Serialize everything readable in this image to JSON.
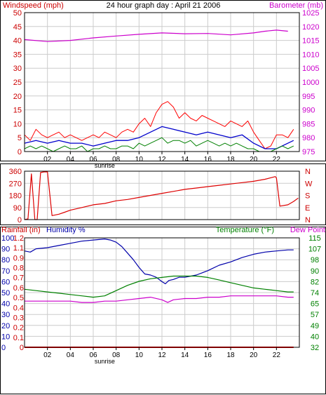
{
  "chart_data": [
    {
      "type": "line",
      "title": "24 hour graph day : April 21 2006",
      "left_axis_label": "Windspeed (mph)",
      "right_axis_label": "Barometer (mb)",
      "left_ticks": [
        "0",
        "5",
        "10",
        "15",
        "20",
        "25",
        "30",
        "35",
        "40",
        "45",
        "50"
      ],
      "right_ticks": [
        "975",
        "980",
        "985",
        "990",
        "995",
        "1000",
        "1005",
        "1010",
        "1015",
        "1020",
        "1025"
      ],
      "ylim_left": [
        0,
        50
      ],
      "ylim_right": [
        975,
        1025
      ],
      "x_ticks": [
        "02",
        "04",
        "06",
        "08",
        "10",
        "12",
        "14",
        "16",
        "18",
        "20",
        "22"
      ],
      "x_note": "sunrise",
      "grid": true,
      "colors": {
        "gust": "#ff0000",
        "average": "#0000cc",
        "speed": "#008000",
        "barometer": "#cc00cc"
      },
      "series": [
        {
          "key": "barometer",
          "axis": "right",
          "x": [
            0,
            2,
            4,
            6,
            8,
            10,
            12,
            14,
            16,
            18,
            20,
            21,
            22,
            23
          ],
          "values": [
            1015.3,
            1014.6,
            1015.0,
            1015.9,
            1016.6,
            1017.2,
            1017.7,
            1017.4,
            1017.5,
            1017.0,
            1017.7,
            1018.3,
            1018.7,
            1018.3
          ]
        },
        {
          "key": "gust",
          "axis": "left",
          "x": [
            0,
            0.5,
            1,
            1.5,
            2,
            2.5,
            3,
            3.5,
            4,
            4.5,
            5,
            5.5,
            6,
            6.5,
            7,
            7.5,
            8,
            8.5,
            9,
            9.5,
            10,
            10.5,
            11,
            11.5,
            12,
            12.5,
            13,
            13.5,
            14,
            14.5,
            15,
            15.5,
            16,
            16.5,
            17,
            17.5,
            18,
            18.5,
            19,
            19.5,
            20,
            20.5,
            21,
            21.5,
            22,
            22.5,
            23,
            23.5
          ],
          "values": [
            6,
            4,
            8,
            6,
            5,
            6,
            7,
            5,
            6,
            5,
            4,
            5,
            6,
            5,
            7,
            6,
            5,
            7,
            8,
            7,
            10,
            12,
            9,
            14,
            17,
            18,
            16,
            12,
            14,
            12,
            11,
            13,
            12,
            11,
            10,
            9,
            11,
            10,
            9,
            11,
            7,
            4,
            1,
            2,
            6,
            6,
            5,
            8
          ]
        },
        {
          "key": "average",
          "axis": "left",
          "x": [
            0,
            1,
            2,
            3,
            4,
            5,
            6,
            7,
            8,
            9,
            10,
            11,
            12,
            13,
            14,
            15,
            16,
            17,
            18,
            19,
            20,
            21,
            22,
            23,
            23.5
          ],
          "values": [
            3,
            4,
            3,
            4,
            3,
            3,
            2,
            3,
            4,
            4,
            5,
            7,
            9,
            8,
            7,
            6,
            7,
            6,
            5,
            6,
            3,
            1,
            1,
            3,
            4
          ]
        },
        {
          "key": "speed",
          "axis": "left",
          "x": [
            0,
            0.5,
            1,
            1.5,
            2,
            2.5,
            3,
            3.5,
            4,
            4.5,
            5,
            5.5,
            6,
            6.5,
            7,
            7.5,
            8,
            8.5,
            9,
            9.5,
            10,
            10.5,
            11,
            11.5,
            12,
            12.5,
            13,
            13.5,
            14,
            14.5,
            15,
            15.5,
            16,
            16.5,
            17,
            17.5,
            18,
            18.5,
            19,
            19.5,
            20,
            20.5,
            21,
            21.5,
            22,
            22.5,
            23,
            23.5
          ],
          "values": [
            1,
            2,
            1,
            2,
            1,
            0,
            1,
            2,
            1,
            1,
            2,
            0,
            1,
            1,
            2,
            1,
            1,
            2,
            2,
            1,
            3,
            2,
            3,
            4,
            5,
            3,
            4,
            4,
            3,
            4,
            2,
            3,
            4,
            3,
            2,
            3,
            2,
            3,
            2,
            1,
            1,
            0,
            0,
            0,
            1,
            2,
            1,
            2
          ]
        }
      ]
    },
    {
      "type": "line",
      "left_ticks": [
        "360",
        "270",
        "180",
        "90",
        "0"
      ],
      "right_ticks": [
        "N",
        "W",
        "S",
        "E",
        "N"
      ],
      "ylim": [
        0,
        360
      ],
      "grid": true,
      "colors": {
        "direction": "#dd0000"
      },
      "series": [
        {
          "key": "direction",
          "x": [
            0,
            0.3,
            0.6,
            0.9,
            1.1,
            1.4,
            1.7,
            2,
            2.4,
            3,
            3.5,
            4,
            5,
            6,
            7,
            8,
            9,
            10,
            11,
            12,
            13,
            14,
            15,
            16,
            17,
            18,
            19,
            20,
            21,
            21.9,
            22,
            22.3,
            23,
            23.5,
            23.9
          ],
          "values": [
            0,
            5,
            340,
            0,
            0,
            350,
            355,
            355,
            30,
            40,
            55,
            70,
            90,
            110,
            120,
            140,
            150,
            165,
            180,
            195,
            210,
            225,
            235,
            245,
            255,
            265,
            275,
            285,
            300,
            320,
            310,
            100,
            110,
            135,
            160
          ]
        }
      ]
    },
    {
      "type": "line",
      "left_axis_label": "Rainfall (in)",
      "humidity_axis_label": "Humidity %",
      "right_axis_label": "Temperature (°F)",
      "right_axis_label_2": "Dew Point",
      "rain_ticks": [
        "0",
        "0.1",
        "0.2",
        "0.3",
        "0.4",
        "0.5",
        "0.6",
        "0.7",
        "0.8",
        "0.9",
        "1.1",
        "1.2"
      ],
      "humidity_ticks": [
        "0",
        "10",
        "20",
        "30",
        "40",
        "50",
        "60",
        "70",
        "80",
        "90",
        "100"
      ],
      "temp_ticks": [
        "32",
        "40",
        "49",
        "57",
        "65",
        "74",
        "82",
        "90",
        "98",
        "107",
        "115"
      ],
      "ylim_humidity": [
        0,
        100
      ],
      "ylim_temperature": [
        32,
        115
      ],
      "x_ticks": [
        "02",
        "04",
        "06",
        "08",
        "10",
        "12",
        "14",
        "16",
        "18",
        "20",
        "22"
      ],
      "x_note": "sunrise",
      "grid": true,
      "colors": {
        "humidity": "#0000aa",
        "temperature": "#008000",
        "dewpoint": "#cc00cc",
        "rainfall": "#ff0000"
      },
      "series": [
        {
          "key": "humidity",
          "axis": "humidity",
          "x": [
            0,
            0.5,
            1,
            2,
            3,
            4,
            5,
            6,
            7,
            7.5,
            8,
            8.5,
            9,
            9.5,
            10,
            10.5,
            11,
            11.5,
            12,
            12.3,
            12.6,
            13,
            13.5,
            14,
            14.5,
            15,
            15.5,
            16,
            17,
            18,
            19,
            20,
            21,
            22,
            23,
            23.5
          ],
          "values": [
            88,
            87,
            90,
            91,
            93,
            95,
            97,
            98,
            99,
            98,
            96,
            92,
            86,
            80,
            73,
            67,
            66,
            64,
            60,
            58,
            61,
            62,
            64,
            64,
            65,
            66,
            68,
            70,
            75,
            78,
            82,
            85,
            87,
            88,
            89,
            89
          ]
        },
        {
          "key": "temperature",
          "axis": "temperature",
          "x": [
            0,
            1,
            2,
            3,
            4,
            5,
            6,
            7,
            8,
            9,
            10,
            11,
            12,
            13,
            14,
            15,
            16,
            17,
            18,
            19,
            20,
            21,
            22,
            23,
            23.5
          ],
          "values": [
            76,
            75,
            74,
            73,
            72,
            71,
            70,
            71,
            75,
            79,
            82,
            84,
            85,
            86,
            86,
            86,
            85,
            83,
            81,
            79,
            77,
            76,
            75,
            74,
            74
          ]
        },
        {
          "key": "dewpoint",
          "axis": "temperature",
          "x": [
            0,
            1,
            2,
            3,
            4,
            5,
            6,
            7,
            8,
            9,
            10,
            11,
            12,
            12.5,
            13,
            14,
            15,
            16,
            17,
            18,
            19,
            20,
            21,
            22,
            23,
            23.5
          ],
          "values": [
            67,
            67,
            67,
            67,
            67,
            66,
            66,
            67,
            67,
            68,
            69,
            70,
            68,
            66,
            68,
            69,
            69,
            70,
            70,
            71,
            71,
            71,
            71,
            71,
            70,
            70
          ]
        },
        {
          "key": "rainfall",
          "axis": "rain",
          "x": [
            0,
            23.5
          ],
          "values": [
            0,
            0
          ]
        }
      ]
    }
  ]
}
